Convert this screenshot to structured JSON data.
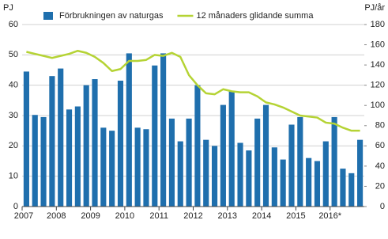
{
  "chart_data": {
    "type": "bar",
    "y_label": "PJ",
    "y2_label": "PJ/år",
    "categories": [
      "2007",
      null,
      null,
      null,
      "2008",
      null,
      null,
      null,
      "2009",
      null,
      null,
      null,
      "2010",
      null,
      null,
      null,
      "2011",
      null,
      null,
      null,
      "2012",
      null,
      null,
      null,
      "2013",
      null,
      null,
      null,
      "2014",
      null,
      null,
      null,
      "2015",
      null,
      null,
      null,
      "2016*",
      null,
      null,
      null
    ],
    "series": [
      {
        "name": "Förbrukningen av naturgas",
        "type": "bar",
        "color": "#1f6fad",
        "values": [
          44.5,
          30.2,
          29.5,
          43,
          45.5,
          32,
          33,
          40,
          42,
          26,
          25,
          41.5,
          50.5,
          26,
          25.5,
          46.5,
          50.5,
          29,
          21.5,
          29,
          40,
          22,
          20,
          33.5,
          38,
          21,
          18.5,
          29,
          33.5,
          19.5,
          15.5,
          27,
          29.5,
          16,
          15,
          21.5,
          29.5,
          12.5,
          11,
          22
        ]
      },
      {
        "name": "12 månaders glidande summa",
        "type": "line",
        "axis": "y2",
        "color": "#b5d334",
        "values": [
          153,
          151,
          149,
          147,
          149,
          151,
          154,
          152,
          148,
          142,
          134,
          136,
          144,
          144,
          145,
          150,
          149,
          152,
          148,
          130,
          120,
          112,
          111,
          116,
          114,
          113,
          113,
          109,
          103,
          101,
          98,
          94,
          90,
          89,
          88,
          83,
          82,
          78,
          75,
          75
        ]
      }
    ],
    "ylim": [
      0,
      60
    ],
    "yticks": [
      0,
      10,
      20,
      30,
      40,
      50,
      60
    ],
    "y2lim": [
      0,
      180
    ],
    "y2ticks": [
      0,
      20,
      40,
      60,
      80,
      100,
      120,
      140,
      160,
      180
    ],
    "grid": true
  }
}
